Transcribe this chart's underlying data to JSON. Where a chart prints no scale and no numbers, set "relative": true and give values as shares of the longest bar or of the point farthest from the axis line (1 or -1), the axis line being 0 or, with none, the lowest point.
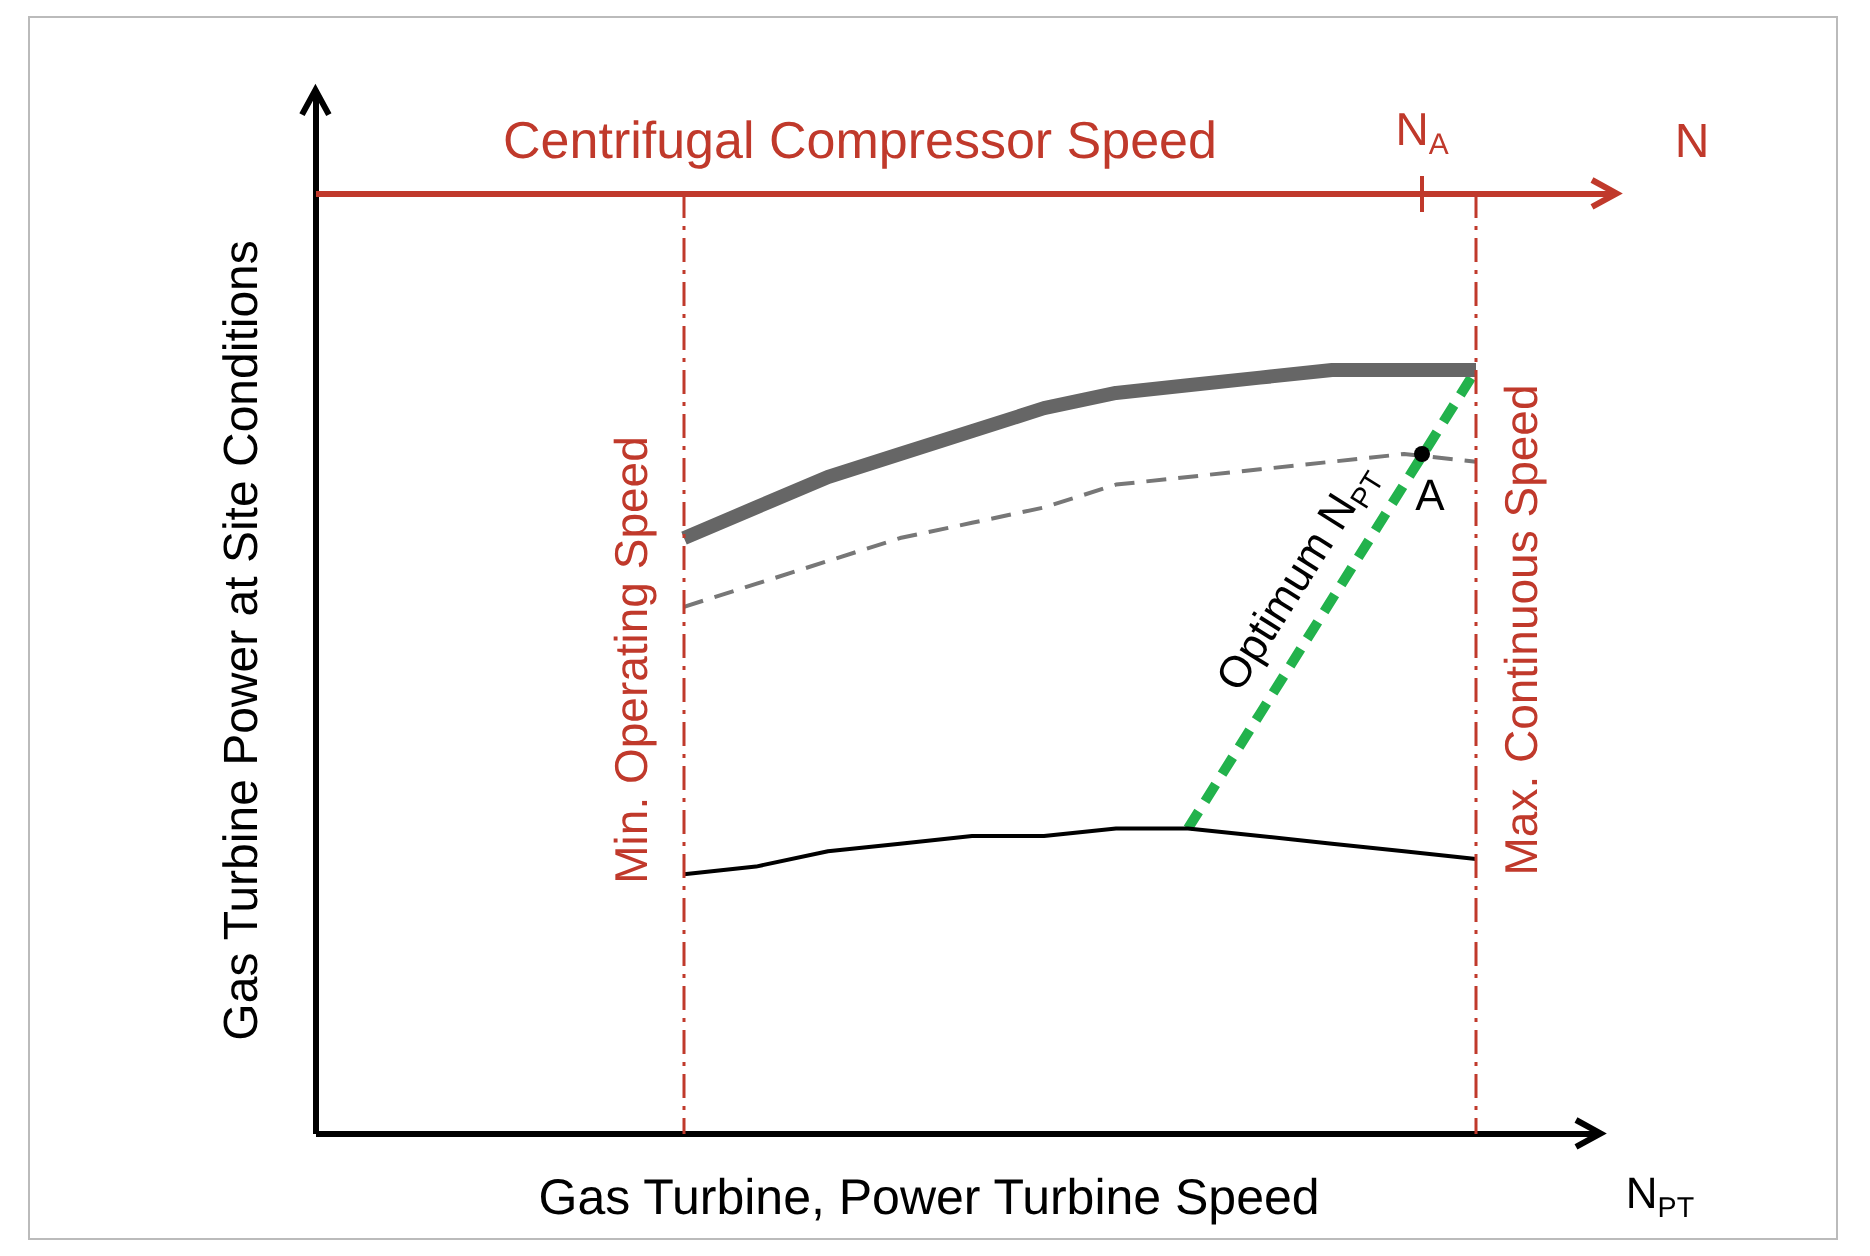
{
  "chart_data": {
    "type": "line",
    "relative": true,
    "legend": false,
    "marker": "none",
    "xlabel": "Gas Turbine, Power Turbine Speed",
    "categories": [
      null,
      null,
      null,
      null,
      null,
      null,
      null,
      null,
      null,
      null,
      null,
      null
    ],
    "series": [
      {
        "color": "#666666",
        "line_style": "solid",
        "values": [
          0.78,
          0.82,
          0.86,
          0.89,
          0.92,
          0.95,
          0.97,
          0.98,
          0.99,
          1,
          1,
          1
        ]
      },
      {
        "color": "#777777",
        "line_style": "dashed",
        "values": [
          0.69,
          0.72,
          0.75,
          0.78,
          0.8,
          0.82,
          0.85,
          0.86,
          0.87,
          0.88,
          0.89,
          0.88
        ]
      },
      {
        "color": "#000000",
        "line_style": "solid",
        "values": [
          0.34,
          0.35,
          0.37,
          0.38,
          0.39,
          0.39,
          0.4,
          0.4,
          0.39,
          0.38,
          0.37,
          0.36
        ]
      },
      {
        "color": "#22b24c",
        "line_style": "dashed",
        "values": [
          null,
          null,
          null,
          null,
          null,
          null,
          null,
          0.4,
          0.55,
          0.7,
          0.85,
          1
        ]
      }
    ],
    "annotations": [
      "Centrifugal Compressor Speed",
      "N$_{A}$",
      "N",
      "N$_{PT}$",
      "Min. Operating Speed",
      "Max. Continuous Speed",
      "Optimum N$_{PT}$",
      {
        "text": "A",
        "y": 0.89
      },
      "Gas Turbine Power at Site Conditions"
    ]
  }
}
